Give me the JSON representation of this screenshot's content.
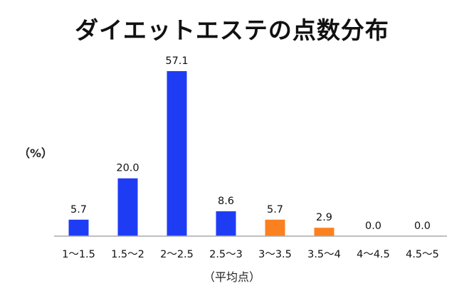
{
  "chart_data": {
    "type": "bar",
    "title": "ダイエットエステの点数分布",
    "ylabel": "（%）",
    "xlabel": "（平均点）",
    "categories": [
      "1〜1.5",
      "1.5〜2",
      "2〜2.5",
      "2.5〜3",
      "3〜3.5",
      "3.5〜4",
      "4〜4.5",
      "4.5〜5"
    ],
    "values": [
      5.7,
      20.0,
      57.1,
      8.6,
      5.7,
      2.9,
      0.0,
      0.0
    ],
    "value_labels": [
      "5.7",
      "20.0",
      "57.1",
      "8.6",
      "5.7",
      "2.9",
      "0.0",
      "0.0"
    ],
    "bar_colors": [
      "#1f3cf5",
      "#1f3cf5",
      "#1f3cf5",
      "#1f3cf5",
      "#fb8020",
      "#fb8020",
      "#1f3cf5",
      "#1f3cf5"
    ],
    "axis_color": "#aaaaaa",
    "ylim": [
      0,
      57.1
    ],
    "grid": false,
    "legend": "none"
  }
}
